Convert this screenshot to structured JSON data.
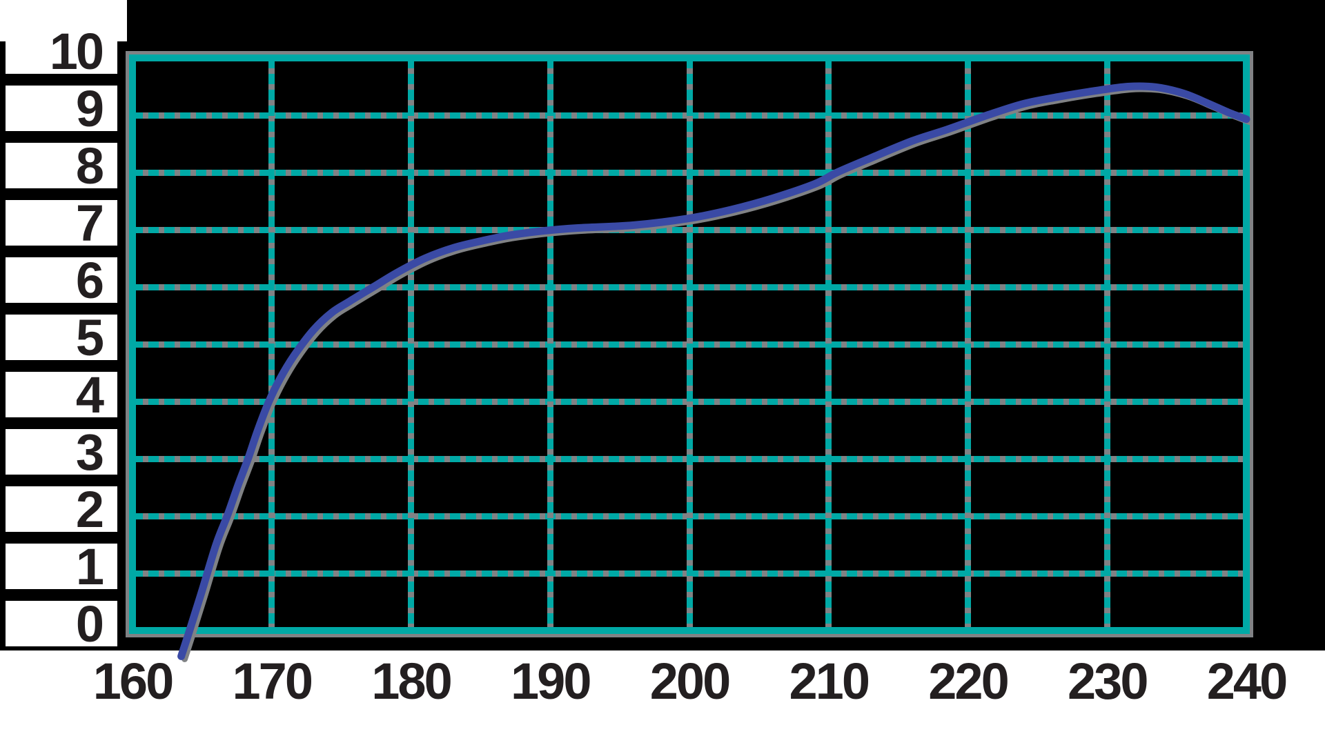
{
  "chart_data": {
    "type": "line",
    "title": "",
    "xlabel": "",
    "ylabel": "",
    "xlim": [
      160,
      240
    ],
    "ylim": [
      0,
      10
    ],
    "x_tick_labels": [
      "160",
      "170",
      "180",
      "190",
      "200",
      "210",
      "220",
      "230",
      "240"
    ],
    "y_tick_labels_top_to_bottom": [
      "10",
      "9",
      "8",
      "7",
      "6",
      "5",
      "4",
      "3",
      "2",
      "1",
      "0"
    ],
    "grid": "dashed teal lines with gray under-shadow on black plot area, solid teal outer border",
    "legend": "none",
    "series": [
      {
        "name": "curve",
        "color": "#3a4aa5",
        "points": [
          [
            163.5,
            -0.45
          ],
          [
            164.1,
            0
          ],
          [
            165.0,
            0.7
          ],
          [
            166.0,
            1.5
          ],
          [
            166.8,
            2.0
          ],
          [
            167.6,
            2.55
          ],
          [
            168.3,
            3.0
          ],
          [
            169.0,
            3.5
          ],
          [
            169.8,
            4.0
          ],
          [
            170.6,
            4.4
          ],
          [
            171.6,
            4.8
          ],
          [
            173.0,
            5.25
          ],
          [
            174.3,
            5.55
          ],
          [
            175.6,
            5.75
          ],
          [
            177.3,
            6.0
          ],
          [
            179.0,
            6.25
          ],
          [
            181.0,
            6.5
          ],
          [
            183.0,
            6.68
          ],
          [
            185.0,
            6.8
          ],
          [
            187.0,
            6.9
          ],
          [
            189.5,
            6.98
          ],
          [
            192.0,
            7.03
          ],
          [
            196.0,
            7.08
          ],
          [
            200.0,
            7.2
          ],
          [
            203.0,
            7.35
          ],
          [
            206.0,
            7.55
          ],
          [
            209.0,
            7.8
          ],
          [
            210.6,
            8.0
          ],
          [
            213.0,
            8.25
          ],
          [
            216.0,
            8.55
          ],
          [
            218.5,
            8.75
          ],
          [
            221.4,
            9.0
          ],
          [
            224.0,
            9.2
          ],
          [
            226.5,
            9.32
          ],
          [
            229.0,
            9.42
          ],
          [
            231.5,
            9.5
          ],
          [
            233.5,
            9.49
          ],
          [
            235.5,
            9.38
          ],
          [
            237.3,
            9.2
          ],
          [
            238.7,
            9.05
          ],
          [
            240.0,
            8.93
          ]
        ]
      }
    ]
  },
  "colors": {
    "background": "#000000",
    "white": "#ffffff",
    "teal_grid": "#00a9a6",
    "gray_shadow": "#808285",
    "curve_blue": "#3a4aa5",
    "label_ink": "#231f20"
  }
}
